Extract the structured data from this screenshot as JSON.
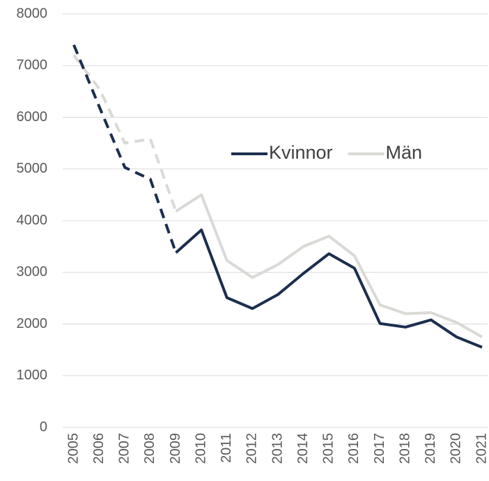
{
  "chart_data": {
    "type": "line",
    "categories": [
      "2005",
      "2006",
      "2007",
      "2008",
      "2009",
      "2010",
      "2011",
      "2012",
      "2013",
      "2014",
      "2015",
      "2016",
      "2017",
      "2018",
      "2019",
      "2020",
      "2021"
    ],
    "series": [
      {
        "name": "Kvinnor",
        "color": "#1b2e4f",
        "values": [
          7400,
          6200,
          5030,
          4800,
          3380,
          3820,
          2510,
          2300,
          2570,
          2980,
          3360,
          3080,
          2010,
          1940,
          2080,
          1750,
          1550
        ]
      },
      {
        "name": "Män",
        "color": "#d9d9d6",
        "values": [
          7200,
          6550,
          5500,
          5580,
          4180,
          4500,
          3230,
          2900,
          3150,
          3500,
          3700,
          3320,
          2370,
          2200,
          2220,
          2030,
          1750
        ]
      }
    ],
    "dashed_through": "2009",
    "ylim": [
      0,
      8000
    ],
    "yticks": [
      0,
      1000,
      2000,
      3000,
      4000,
      5000,
      6000,
      7000,
      8000
    ],
    "grid": true
  }
}
